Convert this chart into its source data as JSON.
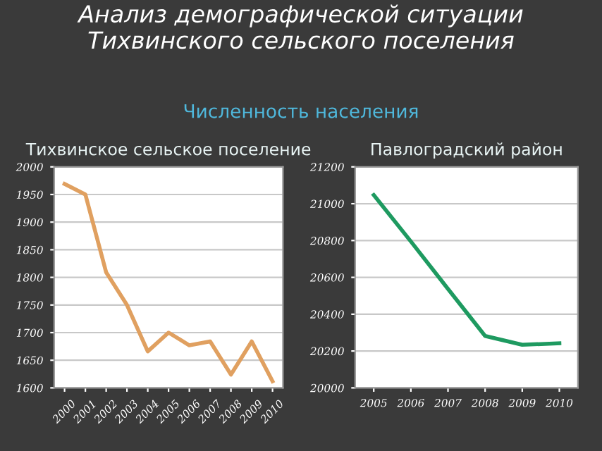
{
  "chart_data": [
    {
      "type": "line",
      "title": "Тихвинское сельское поселение",
      "annotations": [
        "Анализ демографической ситуации Тихвинского сельского поселения",
        "Численность населения"
      ],
      "categories": [
        "2000",
        "2001",
        "2002",
        "2003",
        "2004",
        "2005",
        "2006",
        "2007",
        "2008",
        "2009",
        "2010"
      ],
      "series": [
        {
          "color": "#e0a060",
          "values": [
            1969,
            1950,
            1809,
            1750,
            1666,
            1700,
            1677,
            1684,
            1624,
            1684,
            1612
          ]
        }
      ],
      "ylim": [
        1600,
        2000
      ],
      "yticks": [
        1600,
        1650,
        1700,
        1750,
        1800,
        1850,
        1900,
        1950,
        2000
      ],
      "grid": "y"
    },
    {
      "type": "line",
      "title": "Павлоградский район",
      "categories": [
        "2005",
        "2006",
        "2007",
        "2008",
        "2009",
        "2010"
      ],
      "series": [
        {
          "color": "#1e9a60",
          "values": [
            21047,
            20795,
            20537,
            20282,
            20234,
            20242
          ]
        }
      ],
      "ylim": [
        20000,
        21200
      ],
      "yticks": [
        20000,
        20200,
        20400,
        20600,
        20800,
        21000,
        21200
      ],
      "grid": "y"
    }
  ]
}
